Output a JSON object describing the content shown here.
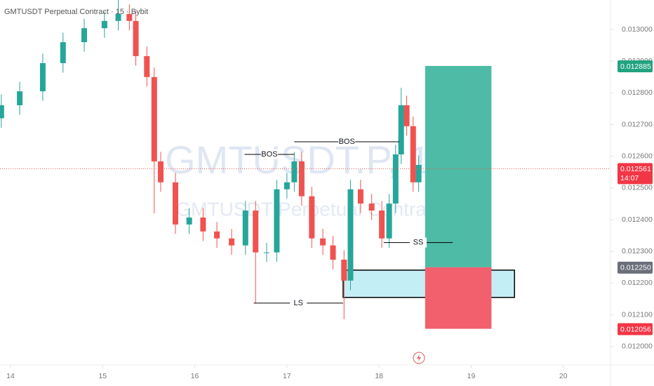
{
  "chart_data": {
    "type": "candlestick",
    "title": "GMTUSDT Perpetual Contract · 15 · Bybit",
    "watermark": "GMTUSDT.P, 15",
    "watermark_subtitle": "GMTUSDT Perpetual Contract",
    "up_color": "#26a69a",
    "down_color": "#ef5350",
    "xlim": [
      13.886,
      20.512
    ],
    "xticks": [
      14,
      15,
      16,
      17,
      18,
      19,
      20
    ],
    "ylim": [
      0.011942,
      0.013093
    ],
    "yticks": [
      {
        "value": 0.012,
        "label": "0.012000"
      },
      {
        "value": 0.0121,
        "label": "0.012100"
      },
      {
        "value": 0.0122,
        "label": "0.012200"
      },
      {
        "value": 0.0123,
        "label": "0.012300"
      },
      {
        "value": 0.0124,
        "label": "0.012400"
      },
      {
        "value": 0.0125,
        "label": "0.012500"
      },
      {
        "value": 0.0126,
        "label": "0.012600"
      },
      {
        "value": 0.0127,
        "label": "0.012700"
      },
      {
        "value": 0.0128,
        "label": "0.012800"
      },
      {
        "value": 0.0129,
        "label": "0.012900"
      },
      {
        "value": 0.013,
        "label": "0.013000"
      }
    ],
    "x": [
      13.9,
      14.1,
      14.35,
      14.57,
      14.8,
      15.02,
      15.17,
      15.29,
      15.36,
      15.48,
      15.56,
      15.63,
      15.79,
      15.94,
      16.09,
      16.24,
      16.4,
      16.55,
      16.66,
      16.78,
      16.89,
      17.0,
      17.08,
      17.16,
      17.27,
      17.39,
      17.5,
      17.62,
      17.69,
      17.8,
      17.92,
      18.03,
      18.11,
      18.18,
      18.24,
      18.3,
      18.37,
      18.43
    ],
    "open": [
      0.01272,
      0.012761,
      0.012805,
      0.012894,
      0.01296,
      0.013004,
      0.013027,
      0.013049,
      0.013027,
      0.012916,
      0.01285,
      0.012584,
      0.012518,
      0.012385,
      0.012407,
      0.012363,
      0.012341,
      0.012319,
      0.012429,
      0.012297,
      0.012297,
      0.012496,
      0.012518,
      0.012584,
      0.012474,
      0.012341,
      0.012319,
      0.012274,
      0.012208,
      0.012496,
      0.012451,
      0.012429,
      0.012341,
      0.012451,
      0.012606,
      0.012761,
      0.012695,
      0.012518
    ],
    "high": [
      0.012795,
      0.012835,
      0.012924,
      0.01299,
      0.013034,
      0.013057,
      0.013093,
      0.013079,
      0.013057,
      0.012946,
      0.01288,
      0.012614,
      0.012548,
      0.012437,
      0.012437,
      0.012393,
      0.012371,
      0.012459,
      0.012459,
      0.012327,
      0.012526,
      0.012548,
      0.012614,
      0.012614,
      0.012504,
      0.012371,
      0.012349,
      0.012304,
      0.012526,
      0.012526,
      0.012481,
      0.012459,
      0.012481,
      0.012636,
      0.012816,
      0.012791,
      0.012725,
      0.012603
    ],
    "low": [
      0.01269,
      0.012731,
      0.012775,
      0.012864,
      0.01293,
      0.012974,
      0.012997,
      0.012997,
      0.012886,
      0.01282,
      0.01242,
      0.012488,
      0.012355,
      0.012355,
      0.012333,
      0.012311,
      0.012289,
      0.012289,
      0.012137,
      0.012267,
      0.012267,
      0.012466,
      0.012488,
      0.012444,
      0.012311,
      0.012289,
      0.012244,
      0.012086,
      0.012178,
      0.012421,
      0.012399,
      0.012311,
      0.012311,
      0.012421,
      0.012576,
      0.012665,
      0.012488,
      0.012488
    ],
    "close": [
      0.012761,
      0.012805,
      0.012894,
      0.01296,
      0.013004,
      0.013027,
      0.013049,
      0.013027,
      0.012916,
      0.01285,
      0.012584,
      0.012518,
      0.012385,
      0.012407,
      0.012363,
      0.012341,
      0.012319,
      0.012429,
      0.012297,
      0.012297,
      0.012496,
      0.012518,
      0.012584,
      0.012474,
      0.012341,
      0.012319,
      0.012274,
      0.012208,
      0.012496,
      0.012451,
      0.012429,
      0.012341,
      0.012451,
      0.012606,
      0.012761,
      0.012695,
      0.012518,
      0.012573
    ],
    "last_price": {
      "value": 0.012561,
      "label": "0.012561",
      "countdown": "14:07"
    },
    "annotations": [
      {
        "label": "BOS",
        "price": 0.012606,
        "x1": 16.54,
        "x2": 17.08
      },
      {
        "label": "BOS",
        "price": 0.012646,
        "x1": 17.08,
        "x2": 18.22
      },
      {
        "label": "LS",
        "price": 0.012137,
        "x1": 16.64,
        "x2": 17.61
      },
      {
        "label": "SS",
        "price": 0.012328,
        "x1": 18.05,
        "x2": 18.8
      }
    ],
    "zone": {
      "top": 0.012241,
      "bottom": 0.012155,
      "x1": 17.61,
      "x2": 19.47,
      "color": "#c4eef5"
    },
    "position": {
      "x1": 18.5,
      "x2": 19.22,
      "target": {
        "value": 0.012885,
        "label": "0.012885"
      },
      "entry": {
        "value": 0.01225,
        "label": "0.012250"
      },
      "stop": {
        "value": 0.012056,
        "label": "0.012056"
      },
      "profit_color": "#4dbba6",
      "loss_color": "#f2606e"
    }
  }
}
